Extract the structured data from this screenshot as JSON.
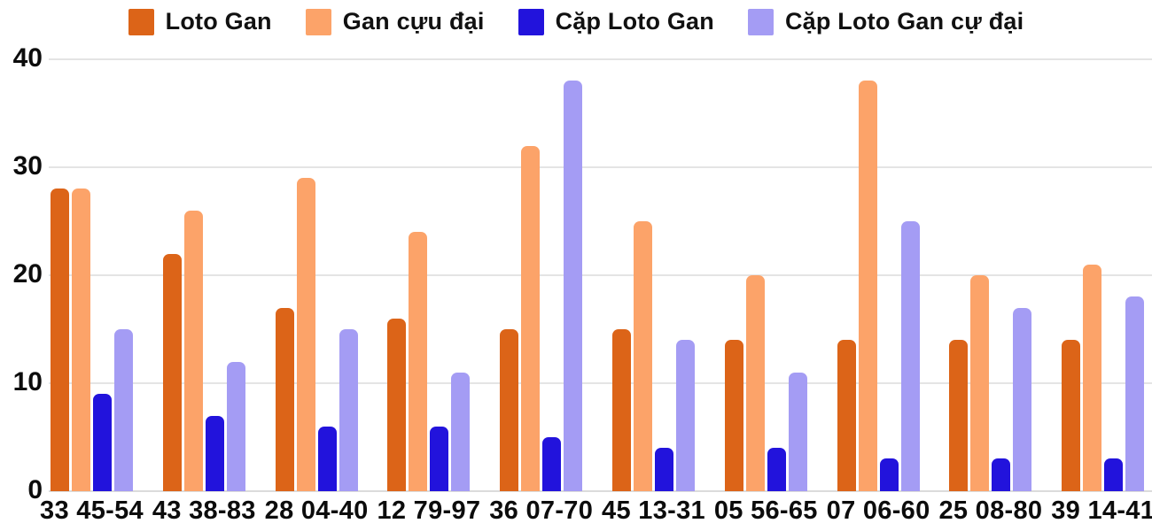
{
  "chart_data": {
    "type": "bar",
    "title": "",
    "xlabel": "",
    "ylabel": "",
    "categories": [
      "33 45-54",
      "43 38-83",
      "28 04-40",
      "12 79-97",
      "36 07-70",
      "45 13-31",
      "05 56-65",
      "07 06-60",
      "25 08-80",
      "39 14-41"
    ],
    "series": [
      {
        "name": "Loto Gan",
        "color": "#DC6418",
        "values": [
          28,
          22,
          17,
          16,
          15,
          15,
          14,
          14,
          14,
          14
        ]
      },
      {
        "name": "Gan cựu đại",
        "color": "#FCA369",
        "values": [
          28,
          26,
          29,
          24,
          32,
          25,
          20,
          38,
          20,
          21
        ]
      },
      {
        "name": "Cặp Loto Gan",
        "color": "#2213DC",
        "values": [
          9,
          7,
          6,
          6,
          5,
          4,
          4,
          3,
          3,
          3
        ]
      },
      {
        "name": "Cặp Loto Gan cự đại",
        "color": "#A49CF4",
        "values": [
          15,
          12,
          15,
          11,
          38,
          14,
          11,
          25,
          17,
          18
        ]
      }
    ],
    "ylim": [
      0,
      40
    ],
    "yticks": [
      0,
      10,
      20,
      30,
      40
    ],
    "grid": true,
    "legend_position": "top"
  },
  "colors": {
    "background": "#FFFFFF",
    "grid": "#E4E4E4",
    "text": "#0c0c0c"
  }
}
